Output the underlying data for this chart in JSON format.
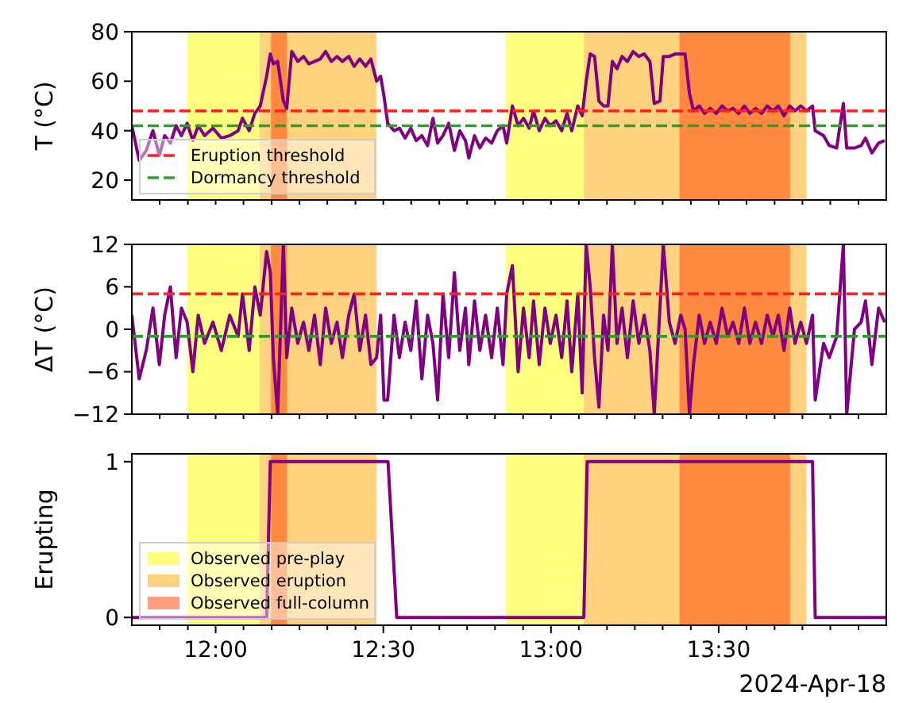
{
  "chart_data": [
    {
      "type": "line",
      "ylabel": "T (°C)",
      "tick_labels": "y",
      "legend": "bottom left",
      "x": [
        11.75,
        11.772,
        11.793,
        11.813,
        11.832,
        11.848,
        11.865,
        11.882,
        11.898,
        11.915,
        11.932,
        11.948,
        11.967,
        11.992,
        12.017,
        12.042,
        12.067,
        12.08,
        12.1,
        12.117,
        12.133,
        12.152,
        12.163,
        12.172,
        12.185,
        12.202,
        12.212,
        12.227,
        12.245,
        12.262,
        12.278,
        12.295,
        12.312,
        12.328,
        12.345,
        12.362,
        12.378,
        12.397,
        12.413,
        12.43,
        12.447,
        12.463,
        12.48,
        12.492,
        12.502,
        12.513,
        12.532,
        12.548,
        12.565,
        12.582,
        12.598,
        12.615,
        12.632,
        12.648,
        12.662,
        12.678,
        12.695,
        12.712,
        12.728,
        12.745,
        12.755,
        12.772,
        12.788,
        12.805,
        12.823,
        12.84,
        12.857,
        12.868,
        12.885,
        12.902,
        12.918,
        12.935,
        12.948,
        12.965,
        12.982,
        12.998,
        13.015,
        13.032,
        13.048,
        13.062,
        13.08,
        13.093,
        13.105,
        13.117,
        13.13,
        13.143,
        13.157,
        13.17,
        13.183,
        13.197,
        13.212,
        13.228,
        13.245,
        13.262,
        13.278,
        13.295,
        13.308,
        13.325,
        13.335,
        13.353,
        13.37,
        13.387,
        13.4,
        13.413,
        13.425,
        13.442,
        13.458,
        13.475,
        13.493,
        13.51,
        13.527,
        13.543,
        13.56,
        13.577,
        13.593,
        13.61,
        13.628,
        13.645,
        13.662,
        13.678,
        13.695,
        13.712,
        13.728,
        13.745,
        13.762,
        13.78,
        13.788,
        13.813,
        13.83,
        13.852,
        13.872,
        13.882,
        13.905,
        13.925,
        13.938,
        13.957,
        13.977,
        13.995
      ],
      "xlim": [
        11.75,
        14.0
      ],
      "xticks": [
        {
          "value": 11.833,
          "label": null
        },
        {
          "value": 11.917,
          "label": null
        },
        {
          "value": 12,
          "label": null
        },
        {
          "value": 12.083,
          "label": null
        },
        {
          "value": 12.167,
          "label": null
        },
        {
          "value": 12.25,
          "label": null
        },
        {
          "value": 12.333,
          "label": null
        },
        {
          "value": 12.417,
          "label": null
        },
        {
          "value": 12.5,
          "label": null
        },
        {
          "value": 12.583,
          "label": null
        },
        {
          "value": 12.667,
          "label": null
        },
        {
          "value": 12.75,
          "label": null
        },
        {
          "value": 12.833,
          "label": null
        },
        {
          "value": 12.917,
          "label": null
        },
        {
          "value": 13,
          "label": null
        },
        {
          "value": 13.083,
          "label": null
        },
        {
          "value": 13.167,
          "label": null
        },
        {
          "value": 13.25,
          "label": null
        },
        {
          "value": 13.333,
          "label": null
        },
        {
          "value": 13.417,
          "label": null
        },
        {
          "value": 13.5,
          "label": null
        },
        {
          "value": 13.583,
          "label": null
        },
        {
          "value": 13.667,
          "label": null
        },
        {
          "value": 13.75,
          "label": null
        },
        {
          "value": 13.833,
          "label": null
        },
        {
          "value": 13.917,
          "label": null
        }
      ],
      "ylim": [
        12,
        80
      ],
      "yticks": [
        20,
        40,
        60,
        80
      ],
      "series": [
        {
          "color": "#800080",
          "values": [
            42,
            28,
            32,
            40,
            30,
            38,
            35,
            42,
            38,
            43,
            36,
            42,
            38,
            41,
            37,
            38,
            40,
            45,
            40,
            47,
            50,
            62,
            71,
            67,
            68,
            52,
            49,
            72,
            68,
            70,
            67,
            68,
            69,
            72,
            68,
            70,
            68,
            70,
            66,
            69,
            66,
            69,
            60,
            62,
            54,
            43,
            40,
            41,
            37,
            41,
            36,
            38,
            34,
            45,
            35,
            38,
            43,
            32,
            40,
            36,
            29,
            38,
            33,
            37,
            35,
            40,
            42,
            35,
            50,
            42,
            45,
            41,
            48,
            40,
            45,
            42,
            44,
            40,
            47,
            40,
            50,
            46,
            60,
            71,
            70,
            52,
            50,
            50,
            68,
            65,
            70,
            68,
            72,
            70,
            71,
            68,
            51,
            52,
            70,
            70,
            71,
            71,
            71,
            55,
            48,
            50,
            47,
            49,
            47,
            50,
            48,
            49,
            47,
            50,
            47,
            49,
            47,
            50,
            48,
            50,
            46,
            50,
            48,
            50,
            48,
            50,
            40,
            38,
            34,
            33,
            51,
            33,
            33,
            34,
            37,
            31,
            35,
            36
          ]
        }
      ],
      "ref_lines": [
        {
          "axis": "y",
          "value": 48,
          "label": "Eruption threshold",
          "color": "#ff2020",
          "line_style": "dashed"
        },
        {
          "axis": "y",
          "value": 42,
          "label": "Dormancy threshold",
          "color": "#2ca02c",
          "line_style": "dashed"
        }
      ],
      "bands": [
        {
          "axis": "x",
          "from": 11.915,
          "to": 12.131,
          "color": "#ffff00"
        },
        {
          "axis": "x",
          "from": 12.131,
          "to": 12.48,
          "color": "#ffa500"
        },
        {
          "axis": "x",
          "from": 12.165,
          "to": 12.213,
          "color": "#ff4000"
        },
        {
          "axis": "x",
          "from": 12.865,
          "to": 13.098,
          "color": "#ffff00"
        },
        {
          "axis": "x",
          "from": 13.098,
          "to": 13.762,
          "color": "#ffa500"
        },
        {
          "axis": "x",
          "from": 13.383,
          "to": 13.713,
          "color": "#ff4000"
        }
      ]
    },
    {
      "type": "line",
      "ylabel": "ΔT (°C)",
      "tick_labels": "y",
      "x": [
        11.75,
        11.772,
        11.793,
        11.813,
        11.832,
        11.848,
        11.865,
        11.882,
        11.898,
        11.915,
        11.932,
        11.948,
        11.967,
        11.992,
        12.017,
        12.042,
        12.067,
        12.08,
        12.1,
        12.117,
        12.133,
        12.152,
        12.163,
        12.172,
        12.185,
        12.202,
        12.212,
        12.227,
        12.245,
        12.262,
        12.278,
        12.295,
        12.312,
        12.328,
        12.345,
        12.362,
        12.378,
        12.397,
        12.413,
        12.43,
        12.447,
        12.463,
        12.48,
        12.492,
        12.502,
        12.513,
        12.532,
        12.548,
        12.565,
        12.582,
        12.598,
        12.615,
        12.632,
        12.648,
        12.662,
        12.678,
        12.695,
        12.712,
        12.728,
        12.745,
        12.755,
        12.772,
        12.788,
        12.805,
        12.823,
        12.84,
        12.857,
        12.868,
        12.885,
        12.902,
        12.918,
        12.935,
        12.948,
        12.965,
        12.982,
        12.998,
        13.015,
        13.032,
        13.048,
        13.062,
        13.08,
        13.093,
        13.105,
        13.117,
        13.13,
        13.143,
        13.157,
        13.17,
        13.183,
        13.197,
        13.212,
        13.228,
        13.245,
        13.262,
        13.278,
        13.295,
        13.308,
        13.325,
        13.335,
        13.353,
        13.37,
        13.387,
        13.4,
        13.413,
        13.425,
        13.442,
        13.458,
        13.475,
        13.493,
        13.51,
        13.527,
        13.543,
        13.56,
        13.577,
        13.593,
        13.61,
        13.628,
        13.645,
        13.662,
        13.678,
        13.695,
        13.712,
        13.728,
        13.745,
        13.762,
        13.78,
        13.788,
        13.813,
        13.83,
        13.852,
        13.872,
        13.882,
        13.905,
        13.925,
        13.938,
        13.957,
        13.977,
        13.995
      ],
      "xlim": [
        11.75,
        14.0
      ],
      "xticks": [
        {
          "value": 11.833,
          "label": null
        },
        {
          "value": 11.917,
          "label": null
        },
        {
          "value": 12,
          "label": null
        },
        {
          "value": 12.083,
          "label": null
        },
        {
          "value": 12.167,
          "label": null
        },
        {
          "value": 12.25,
          "label": null
        },
        {
          "value": 12.333,
          "label": null
        },
        {
          "value": 12.417,
          "label": null
        },
        {
          "value": 12.5,
          "label": null
        },
        {
          "value": 12.583,
          "label": null
        },
        {
          "value": 12.667,
          "label": null
        },
        {
          "value": 12.75,
          "label": null
        },
        {
          "value": 12.833,
          "label": null
        },
        {
          "value": 12.917,
          "label": null
        },
        {
          "value": 13,
          "label": null
        },
        {
          "value": 13.083,
          "label": null
        },
        {
          "value": 13.167,
          "label": null
        },
        {
          "value": 13.25,
          "label": null
        },
        {
          "value": 13.333,
          "label": null
        },
        {
          "value": 13.417,
          "label": null
        },
        {
          "value": 13.5,
          "label": null
        },
        {
          "value": 13.583,
          "label": null
        },
        {
          "value": 13.667,
          "label": null
        },
        {
          "value": 13.75,
          "label": null
        },
        {
          "value": 13.833,
          "label": null
        },
        {
          "value": 13.917,
          "label": null
        }
      ],
      "ylim": [
        -12,
        12
      ],
      "yticks": [
        {
          "value": -12,
          "label": "−12"
        },
        {
          "value": -6,
          "label": "−6"
        },
        0,
        6,
        12
      ],
      "series": [
        {
          "color": "#800080",
          "values": [
            2,
            -7,
            -3,
            3,
            -5,
            2,
            6,
            -4,
            3,
            1,
            -6,
            2,
            -2,
            1,
            -3,
            2,
            -1,
            5,
            -3,
            6,
            2,
            11,
            8,
            -4,
            -12,
            12,
            -4,
            3,
            -2,
            1,
            -3,
            2,
            -5,
            3,
            -2,
            1,
            -4,
            2,
            5,
            -3,
            2,
            -5,
            -4,
            2,
            -10,
            -10,
            2,
            -4,
            1,
            -3,
            4,
            -7,
            2,
            -2,
            -10,
            5,
            -4,
            8,
            -3,
            3,
            -5,
            4,
            -3,
            2,
            -4,
            3,
            -5,
            5,
            9,
            -6,
            3,
            -4,
            4,
            -5,
            3,
            -2,
            2,
            -4,
            4,
            -6,
            5,
            -9,
            12,
            6,
            -4,
            -11,
            2,
            -3,
            12,
            -2,
            3,
            -4,
            4,
            -2,
            2,
            -3,
            -12,
            3,
            12,
            1,
            -2,
            2,
            0,
            -12,
            -5,
            2,
            -2,
            1,
            -2,
            3,
            -1,
            1,
            -2,
            3,
            -2,
            1,
            -2,
            2,
            -1,
            2,
            -3,
            3,
            -2,
            1,
            -2,
            2,
            -10,
            -2,
            -4,
            -1,
            12,
            -12,
            0,
            1,
            4,
            -5,
            3,
            1
          ]
        }
      ],
      "ref_lines": [
        {
          "axis": "y",
          "value": 5,
          "color": "#ff2020",
          "line_style": "dashed"
        },
        {
          "axis": "y",
          "value": -1,
          "color": "#2ca02c",
          "line_style": "dashed"
        }
      ],
      "bands": [
        {
          "axis": "x",
          "from": 11.915,
          "to": 12.131,
          "color": "#ffff00"
        },
        {
          "axis": "x",
          "from": 12.131,
          "to": 12.48,
          "color": "#ffa500"
        },
        {
          "axis": "x",
          "from": 12.165,
          "to": 12.213,
          "color": "#ff4000"
        },
        {
          "axis": "x",
          "from": 12.865,
          "to": 13.098,
          "color": "#ffff00"
        },
        {
          "axis": "x",
          "from": 13.098,
          "to": 13.762,
          "color": "#ffa500"
        },
        {
          "axis": "x",
          "from": 13.383,
          "to": 13.713,
          "color": "#ff4000"
        }
      ]
    },
    {
      "type": "line",
      "ylabel": "Erupting",
      "legend": "bottom left",
      "annotations": [
        "2024-Apr-18"
      ],
      "x": [
        11.75,
        12.152,
        12.163,
        12.514,
        12.54,
        13.098,
        13.108,
        13.78,
        13.788,
        14.0
      ],
      "xlim": [
        11.75,
        14.0
      ],
      "xticks": [
        {
          "value": 11.833,
          "label": null
        },
        {
          "value": 11.917,
          "label": null
        },
        {
          "value": 12,
          "label": "12:00"
        },
        {
          "value": 12.083,
          "label": null
        },
        {
          "value": 12.167,
          "label": null
        },
        {
          "value": 12.25,
          "label": null
        },
        {
          "value": 12.333,
          "label": null
        },
        {
          "value": 12.417,
          "label": null
        },
        {
          "value": 12.5,
          "label": "12:30"
        },
        {
          "value": 12.583,
          "label": null
        },
        {
          "value": 12.667,
          "label": null
        },
        {
          "value": 12.75,
          "label": null
        },
        {
          "value": 12.833,
          "label": null
        },
        {
          "value": 12.917,
          "label": null
        },
        {
          "value": 13,
          "label": "13:00"
        },
        {
          "value": 13.083,
          "label": null
        },
        {
          "value": 13.167,
          "label": null
        },
        {
          "value": 13.25,
          "label": null
        },
        {
          "value": 13.333,
          "label": null
        },
        {
          "value": 13.417,
          "label": null
        },
        {
          "value": 13.5,
          "label": "13:30"
        },
        {
          "value": 13.583,
          "label": null
        },
        {
          "value": 13.667,
          "label": null
        },
        {
          "value": 13.75,
          "label": null
        },
        {
          "value": 13.833,
          "label": null
        },
        {
          "value": 13.917,
          "label": null
        }
      ],
      "ylim": [
        -0.05,
        1.05
      ],
      "yticks": [
        0,
        1
      ],
      "series": [
        {
          "color": "#800080",
          "values": [
            0,
            0,
            1,
            1,
            0,
            0,
            1,
            1,
            0,
            0
          ]
        }
      ],
      "bands": [
        {
          "axis": "x",
          "from": 11.915,
          "to": 12.131,
          "color": "#ffff00",
          "label": "Observed pre-play"
        },
        {
          "axis": "x",
          "from": 12.131,
          "to": 12.48,
          "color": "#ffa500",
          "label": "Observed eruption"
        },
        {
          "axis": "x",
          "from": 12.165,
          "to": 12.213,
          "color": "#ff4000",
          "label": "Observed full-column"
        },
        {
          "axis": "x",
          "from": 12.865,
          "to": 13.098,
          "color": "#ffff00"
        },
        {
          "axis": "x",
          "from": 13.098,
          "to": 13.762,
          "color": "#ffa500"
        },
        {
          "axis": "x",
          "from": 13.383,
          "to": 13.713,
          "color": "#ff4000"
        }
      ]
    }
  ]
}
